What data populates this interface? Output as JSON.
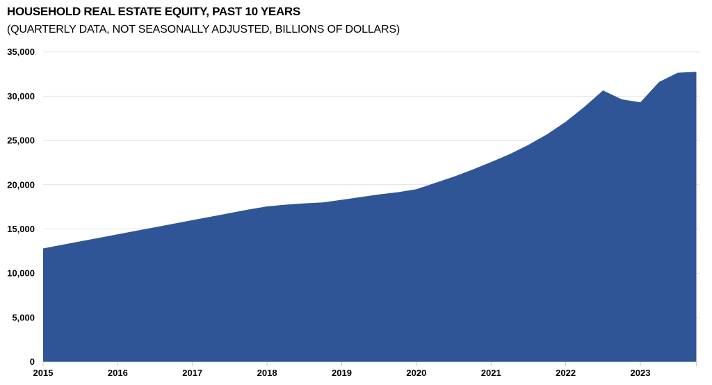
{
  "chart": {
    "title": "HOUSEHOLD REAL ESTATE EQUITY, PAST 10 YEARS",
    "subtitle": "(QUARTERLY DATA, NOT SEASONALLY ADJUSTED, BILLIONS OF DOLLARS)"
  },
  "chart_data": {
    "type": "area",
    "title": "HOUSEHOLD REAL ESTATE EQUITY, PAST 10 YEARS",
    "subtitle": "(QUARTERLY DATA, NOT SEASONALLY ADJUSTED, BILLIONS OF DOLLARS)",
    "unit": "billions of dollars",
    "frequency": "quarterly",
    "x": [
      "2015 Q1",
      "2015 Q2",
      "2015 Q3",
      "2015 Q4",
      "2016 Q1",
      "2016 Q2",
      "2016 Q3",
      "2016 Q4",
      "2017 Q1",
      "2017 Q2",
      "2017 Q3",
      "2017 Q4",
      "2018 Q1",
      "2018 Q2",
      "2018 Q3",
      "2018 Q4",
      "2019 Q1",
      "2019 Q2",
      "2019 Q3",
      "2019 Q4",
      "2020 Q1",
      "2020 Q2",
      "2020 Q3",
      "2020 Q4",
      "2021 Q1",
      "2021 Q2",
      "2021 Q3",
      "2021 Q4",
      "2022 Q1",
      "2022 Q2",
      "2022 Q3",
      "2022 Q4",
      "2023 Q1",
      "2023 Q2",
      "2023 Q3",
      "2023 Q4"
    ],
    "values": [
      12800,
      13200,
      13600,
      14000,
      14400,
      14800,
      15200,
      15600,
      16000,
      16400,
      16800,
      17200,
      17550,
      17750,
      17900,
      18000,
      18300,
      18600,
      18900,
      19150,
      19500,
      20200,
      20900,
      21700,
      22550,
      23450,
      24500,
      25700,
      27100,
      28800,
      30650,
      29650,
      29300,
      31600,
      32650,
      32750
    ],
    "ylim": [
      0,
      35000
    ],
    "ytick_step": 5000,
    "y_tick_labels": [
      "0",
      "5,000",
      "10,000",
      "15,000",
      "20,000",
      "25,000",
      "30,000",
      "35,000"
    ],
    "x_tick_labels": [
      "2015",
      "2016",
      "2017",
      "2018",
      "2019",
      "2020",
      "2021",
      "2022",
      "2023"
    ],
    "grid": "horizontal",
    "legend": "none",
    "colors": {
      "area_fill": "#2F5597",
      "gridline": "#E2E2E2",
      "tick": "#BFBFBF",
      "text": "#000000",
      "background": "#FFFFFF"
    }
  }
}
